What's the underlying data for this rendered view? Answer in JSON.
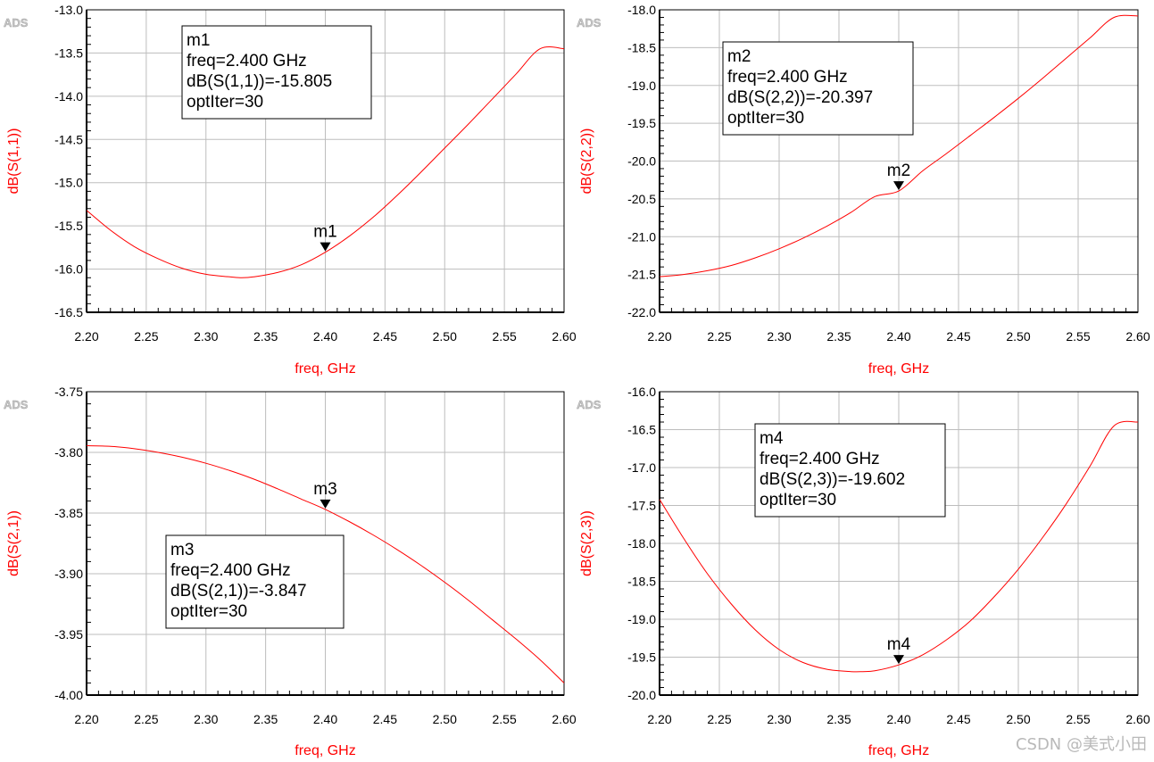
{
  "chart_data": [
    {
      "type": "line",
      "logo": "ADS",
      "xlabel": "freq, GHz",
      "ylabel": "dB(S(1,1))",
      "xlim": [
        2.2,
        2.6
      ],
      "ylim": [
        -16.5,
        -13.0
      ],
      "xticks": [
        "2.20",
        "2.25",
        "2.30",
        "2.35",
        "2.40",
        "2.45",
        "2.50",
        "2.55",
        "2.60"
      ],
      "yticks": [
        "-13.0",
        "-13.5",
        "-14.0",
        "-14.5",
        "-15.0",
        "-15.5",
        "-16.0",
        "-16.5"
      ],
      "color": "#ff0000",
      "series": [
        {
          "name": "dB(S(1,1))",
          "x": [
            2.2,
            2.22,
            2.24,
            2.26,
            2.28,
            2.3,
            2.32,
            2.33,
            2.34,
            2.36,
            2.38,
            2.4,
            2.42,
            2.44,
            2.46,
            2.48,
            2.5,
            2.52,
            2.54,
            2.56,
            2.58,
            2.6
          ],
          "y": [
            -15.32,
            -15.55,
            -15.74,
            -15.88,
            -15.99,
            -16.06,
            -16.09,
            -16.1,
            -16.09,
            -16.04,
            -15.95,
            -15.805,
            -15.62,
            -15.4,
            -15.15,
            -14.88,
            -14.6,
            -14.32,
            -14.03,
            -13.74,
            -13.45,
            -13.45
          ]
        }
      ],
      "marker": {
        "name": "m1",
        "x": 2.4,
        "y": -15.805
      },
      "annotation": {
        "lines": [
          "m1",
          "freq=2.400 GHz",
          "dB(S(1,1))=-15.805",
          "optIter=30"
        ]
      }
    },
    {
      "type": "line",
      "logo": "ADS",
      "xlabel": "freq, GHz",
      "ylabel": "dB(S(2,2))",
      "xlim": [
        2.2,
        2.6
      ],
      "ylim": [
        -22.0,
        -18.0
      ],
      "xticks": [
        "2.20",
        "2.25",
        "2.30",
        "2.35",
        "2.40",
        "2.45",
        "2.50",
        "2.55",
        "2.60"
      ],
      "yticks": [
        "-18.0",
        "-18.5",
        "-19.0",
        "-19.5",
        "-20.0",
        "-20.5",
        "-21.0",
        "-21.5",
        "-22.0"
      ],
      "color": "#ff0000",
      "series": [
        {
          "name": "dB(S(2,2))",
          "x": [
            2.2,
            2.22,
            2.24,
            2.26,
            2.28,
            2.3,
            2.32,
            2.34,
            2.36,
            2.38,
            2.4,
            2.42,
            2.44,
            2.46,
            2.48,
            2.5,
            2.52,
            2.54,
            2.56,
            2.58,
            2.6
          ],
          "y": [
            -21.53,
            -21.5,
            -21.45,
            -21.38,
            -21.28,
            -21.16,
            -21.02,
            -20.86,
            -20.68,
            -20.47,
            -20.397,
            -20.13,
            -19.9,
            -19.66,
            -19.42,
            -19.17,
            -18.91,
            -18.64,
            -18.37,
            -18.1,
            -18.08
          ]
        }
      ],
      "marker": {
        "name": "m2",
        "x": 2.4,
        "y": -20.397
      },
      "annotation": {
        "lines": [
          "m2",
          "freq=2.400 GHz",
          "dB(S(2,2))=-20.397",
          "optIter=30"
        ]
      }
    },
    {
      "type": "line",
      "logo": "ADS",
      "xlabel": "freq, GHz",
      "ylabel": "dB(S(2,1))",
      "xlim": [
        2.2,
        2.6
      ],
      "ylim": [
        -4.0,
        -3.75
      ],
      "xticks": [
        "2.20",
        "2.25",
        "2.30",
        "2.35",
        "2.40",
        "2.45",
        "2.50",
        "2.55",
        "2.60"
      ],
      "yticks": [
        "-3.75",
        "-3.80",
        "-3.85",
        "-3.90",
        "-3.95",
        "-4.00"
      ],
      "color": "#ff0000",
      "series": [
        {
          "name": "dB(S(2,1))",
          "x": [
            2.2,
            2.22,
            2.24,
            2.26,
            2.28,
            2.3,
            2.32,
            2.34,
            2.36,
            2.38,
            2.4,
            2.42,
            2.44,
            2.46,
            2.48,
            2.5,
            2.52,
            2.54,
            2.56,
            2.58,
            2.6
          ],
          "y": [
            -3.7945,
            -3.795,
            -3.797,
            -3.8,
            -3.804,
            -3.809,
            -3.815,
            -3.822,
            -3.83,
            -3.8385,
            -3.847,
            -3.857,
            -3.868,
            -3.88,
            -3.893,
            -3.907,
            -3.922,
            -3.938,
            -3.954,
            -3.971,
            -3.99
          ]
        }
      ],
      "marker": {
        "name": "m3",
        "x": 2.4,
        "y": -3.847
      },
      "annotation": {
        "lines": [
          "m3",
          "freq=2.400 GHz",
          "dB(S(2,1))=-3.847",
          "optIter=30"
        ]
      }
    },
    {
      "type": "line",
      "logo": "ADS",
      "xlabel": "freq, GHz",
      "ylabel": "dB(S(2,3))",
      "xlim": [
        2.2,
        2.6
      ],
      "ylim": [
        -20.0,
        -16.0
      ],
      "xticks": [
        "2.20",
        "2.25",
        "2.30",
        "2.35",
        "2.40",
        "2.45",
        "2.50",
        "2.55",
        "2.60"
      ],
      "yticks": [
        "-16.0",
        "-16.5",
        "-17.0",
        "-17.5",
        "-18.0",
        "-18.5",
        "-19.0",
        "-19.5",
        "-20.0"
      ],
      "color": "#ff0000",
      "series": [
        {
          "name": "dB(S(2,3))",
          "x": [
            2.2,
            2.22,
            2.24,
            2.26,
            2.28,
            2.3,
            2.32,
            2.34,
            2.36,
            2.37,
            2.38,
            2.4,
            2.42,
            2.44,
            2.46,
            2.48,
            2.5,
            2.52,
            2.54,
            2.56,
            2.58,
            2.6
          ],
          "y": [
            -17.42,
            -17.93,
            -18.4,
            -18.8,
            -19.14,
            -19.4,
            -19.57,
            -19.66,
            -19.69,
            -19.69,
            -19.68,
            -19.602,
            -19.47,
            -19.27,
            -19.02,
            -18.7,
            -18.34,
            -17.93,
            -17.48,
            -16.98,
            -16.45,
            -16.4
          ]
        }
      ],
      "marker": {
        "name": "m4",
        "x": 2.4,
        "y": -19.602
      },
      "annotation": {
        "lines": [
          "m4",
          "freq=2.400 GHz",
          "dB(S(2,3))=-19.602",
          "optIter=30"
        ]
      }
    }
  ],
  "watermark": "CSDN @美式小田"
}
